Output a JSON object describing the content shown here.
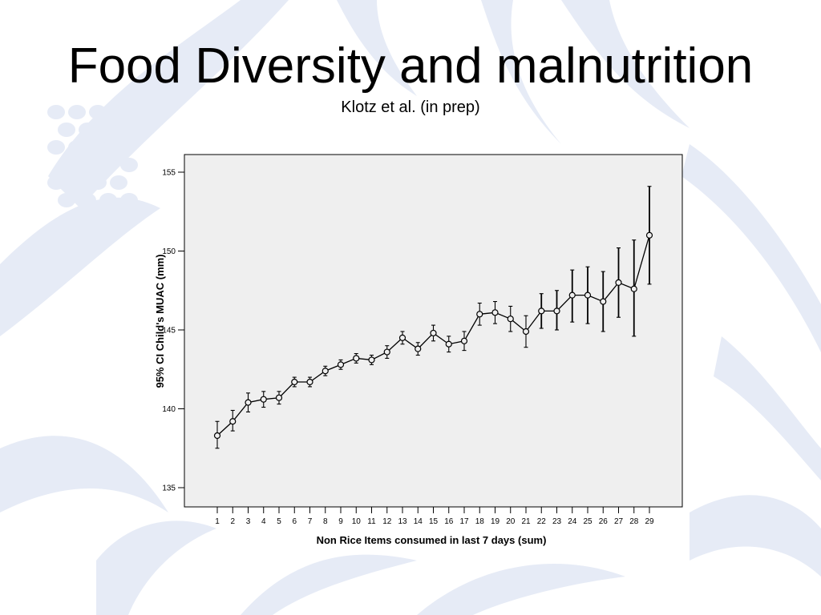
{
  "slide": {
    "title": "Food Diversity and malnutrition",
    "subtitle": "Klotz et al. (in prep)"
  },
  "colors": {
    "plot_background": "#efefef",
    "background_motif": "#e6ebf6",
    "line": "#000000"
  },
  "chart_data": {
    "type": "line",
    "error_bars": "95% CI",
    "xlabel": "Non Rice Items consumed in last 7 days (sum)",
    "ylabel": "95% CI Child's MUAC (mm)",
    "ylim": [
      134,
      156
    ],
    "yticks": [
      135,
      140,
      145,
      150,
      155
    ],
    "grid": false,
    "legend": "none",
    "x": [
      1,
      2,
      3,
      4,
      5,
      6,
      7,
      8,
      9,
      10,
      11,
      12,
      13,
      14,
      15,
      16,
      17,
      18,
      19,
      20,
      21,
      22,
      23,
      24,
      25,
      26,
      27,
      28,
      29
    ],
    "series": [
      {
        "mean": [
          138.3,
          139.2,
          140.4,
          140.6,
          140.7,
          141.7,
          141.7,
          142.4,
          142.8,
          143.2,
          143.1,
          143.6,
          144.5,
          143.8,
          144.8,
          144.1,
          144.3,
          146.0,
          146.1,
          145.7,
          144.9,
          146.2,
          146.2,
          147.2,
          147.2,
          146.8,
          148.0,
          147.6,
          151.0
        ],
        "lower": [
          137.5,
          138.6,
          139.8,
          140.1,
          140.3,
          141.4,
          141.4,
          142.1,
          142.5,
          142.9,
          142.8,
          143.2,
          144.1,
          143.4,
          144.3,
          143.6,
          143.7,
          145.3,
          145.4,
          144.9,
          143.9,
          145.1,
          145.0,
          145.5,
          145.4,
          144.9,
          145.8,
          144.6,
          147.9
        ],
        "upper": [
          139.2,
          139.9,
          141.0,
          141.1,
          141.1,
          142.0,
          142.0,
          142.7,
          143.1,
          143.5,
          143.4,
          144.0,
          144.9,
          144.2,
          145.3,
          144.6,
          144.9,
          146.7,
          146.8,
          146.5,
          145.9,
          147.3,
          147.5,
          148.8,
          149.0,
          148.7,
          150.2,
          150.7,
          154.1
        ]
      }
    ]
  }
}
